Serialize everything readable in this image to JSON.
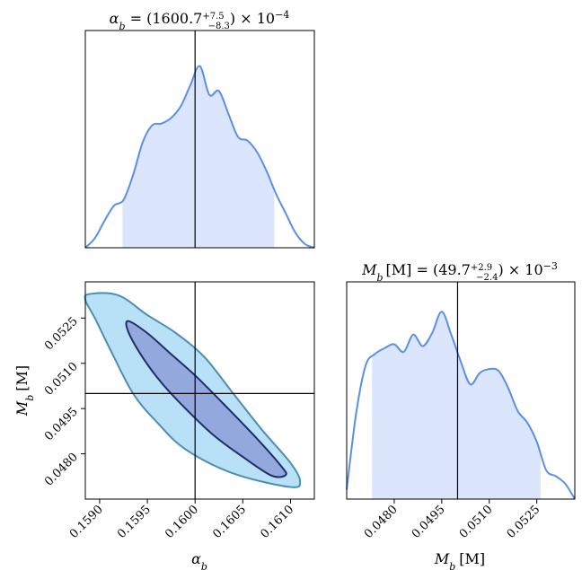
{
  "chart_data": [
    {
      "type": "area",
      "panel": "alpha-marginal",
      "title": {
        "lhs": "α",
        "lhs_sub": "b",
        "value": "1600.7",
        "err_plus": "+7.5",
        "err_minus": "−8.3",
        "scale": "× 10",
        "scale_exp": "−4"
      },
      "xlim": [
        0.15885,
        0.16125
      ],
      "truth": 0.16,
      "credible_interval": [
        0.15924,
        0.16083
      ],
      "x": [
        0.15885,
        0.15895,
        0.15905,
        0.15915,
        0.15925,
        0.15935,
        0.15945,
        0.15955,
        0.15965,
        0.15975,
        0.15985,
        0.15995,
        0.16005,
        0.16015,
        0.16025,
        0.16035,
        0.16045,
        0.16055,
        0.16065,
        0.16075,
        0.16085,
        0.16095,
        0.16105,
        0.16115,
        0.16125
      ],
      "y": [
        0.0,
        0.05,
        0.14,
        0.22,
        0.25,
        0.38,
        0.55,
        0.64,
        0.65,
        0.68,
        0.74,
        0.85,
        0.95,
        0.8,
        0.82,
        0.7,
        0.58,
        0.56,
        0.5,
        0.4,
        0.28,
        0.18,
        0.08,
        0.02,
        0.0
      ],
      "color": "#5b8fe6",
      "fill": "#dbe5fb"
    },
    {
      "type": "contour",
      "panel": "joint-2d",
      "xlabel": "α",
      "xlabel_sub": "b",
      "ylabel": "M",
      "ylabel_sub": "b",
      "ylabel_unit": "[M]",
      "xlim": [
        0.15885,
        0.16125
      ],
      "ylim": [
        0.0465,
        0.0537
      ],
      "xticks": [
        "0.1590",
        "0.1595",
        "0.1600",
        "0.1605",
        "0.1610"
      ],
      "xtick_values": [
        0.159,
        0.1595,
        0.16,
        0.1605,
        0.161
      ],
      "yticks": [
        "0.0480",
        "0.0495",
        "0.0510",
        "0.0525"
      ],
      "ytick_values": [
        0.048,
        0.0495,
        0.051,
        0.0525
      ],
      "truth": [
        0.16,
        0.05
      ],
      "outer_contour": [
        [
          0.1589,
          0.0533
        ],
        [
          0.1592,
          0.05325
        ],
        [
          0.1595,
          0.0526
        ],
        [
          0.1598,
          0.052
        ],
        [
          0.1601,
          0.0512
        ],
        [
          0.1604,
          0.05
        ],
        [
          0.1607,
          0.0488
        ],
        [
          0.161,
          0.0477
        ],
        [
          0.1611,
          0.0471
        ],
        [
          0.161,
          0.0469
        ],
        [
          0.1604,
          0.04735
        ],
        [
          0.1599,
          0.04815
        ],
        [
          0.1596,
          0.04905
        ],
        [
          0.15935,
          0.05
        ],
        [
          0.15912,
          0.0514
        ],
        [
          0.15895,
          0.0525
        ],
        [
          0.15885,
          0.0531
        ]
      ],
      "inner_contour": [
        [
          0.1593,
          0.0524
        ],
        [
          0.1595,
          0.052
        ],
        [
          0.15975,
          0.0513
        ],
        [
          0.16,
          0.0506
        ],
        [
          0.1603,
          0.04965
        ],
        [
          0.16065,
          0.0485
        ],
        [
          0.1609,
          0.0476
        ],
        [
          0.16095,
          0.0473
        ],
        [
          0.1608,
          0.04728
        ],
        [
          0.1605,
          0.0479
        ],
        [
          0.1602,
          0.0486
        ],
        [
          0.1599,
          0.0495
        ],
        [
          0.15965,
          0.05035
        ],
        [
          0.15945,
          0.0512
        ],
        [
          0.1593,
          0.05205
        ]
      ],
      "outer_fill": "#b8e0f7",
      "outer_stroke": "#4b8fb0",
      "inner_fill": "#93a8dc",
      "inner_stroke": "#1f2d6b"
    },
    {
      "type": "area",
      "panel": "mass-marginal",
      "title": {
        "lhs": "M",
        "lhs_sub": "b",
        "lhs_unit": "[M]",
        "value": "49.7",
        "err_plus": "+2.9",
        "err_minus": "−2.4",
        "scale": "× 10",
        "scale_exp": "−3"
      },
      "xlabel": "M",
      "xlabel_sub": "b",
      "xlabel_unit": "[M]",
      "xlim": [
        0.0465,
        0.0537
      ],
      "xticks": [
        "0.0480",
        "0.0495",
        "0.0510",
        "0.0525"
      ],
      "xtick_values": [
        0.048,
        0.0495,
        0.051,
        0.0525
      ],
      "truth": 0.05,
      "credible_interval": [
        0.0473,
        0.05262
      ],
      "x": [
        0.0465,
        0.0468,
        0.0471,
        0.0474,
        0.0477,
        0.048,
        0.0483,
        0.0486,
        0.0489,
        0.0492,
        0.0495,
        0.0498,
        0.0501,
        0.0504,
        0.0507,
        0.051,
        0.0513,
        0.0516,
        0.0519,
        0.0522,
        0.0525,
        0.0528,
        0.0531,
        0.0534,
        0.0537
      ],
      "y": [
        0.05,
        0.45,
        0.7,
        0.76,
        0.79,
        0.81,
        0.77,
        0.86,
        0.8,
        0.87,
        0.98,
        0.86,
        0.72,
        0.6,
        0.66,
        0.68,
        0.67,
        0.58,
        0.46,
        0.4,
        0.3,
        0.15,
        0.12,
        0.08,
        0.0
      ],
      "color": "#5b8fe6",
      "fill": "#dbe5fb"
    }
  ]
}
